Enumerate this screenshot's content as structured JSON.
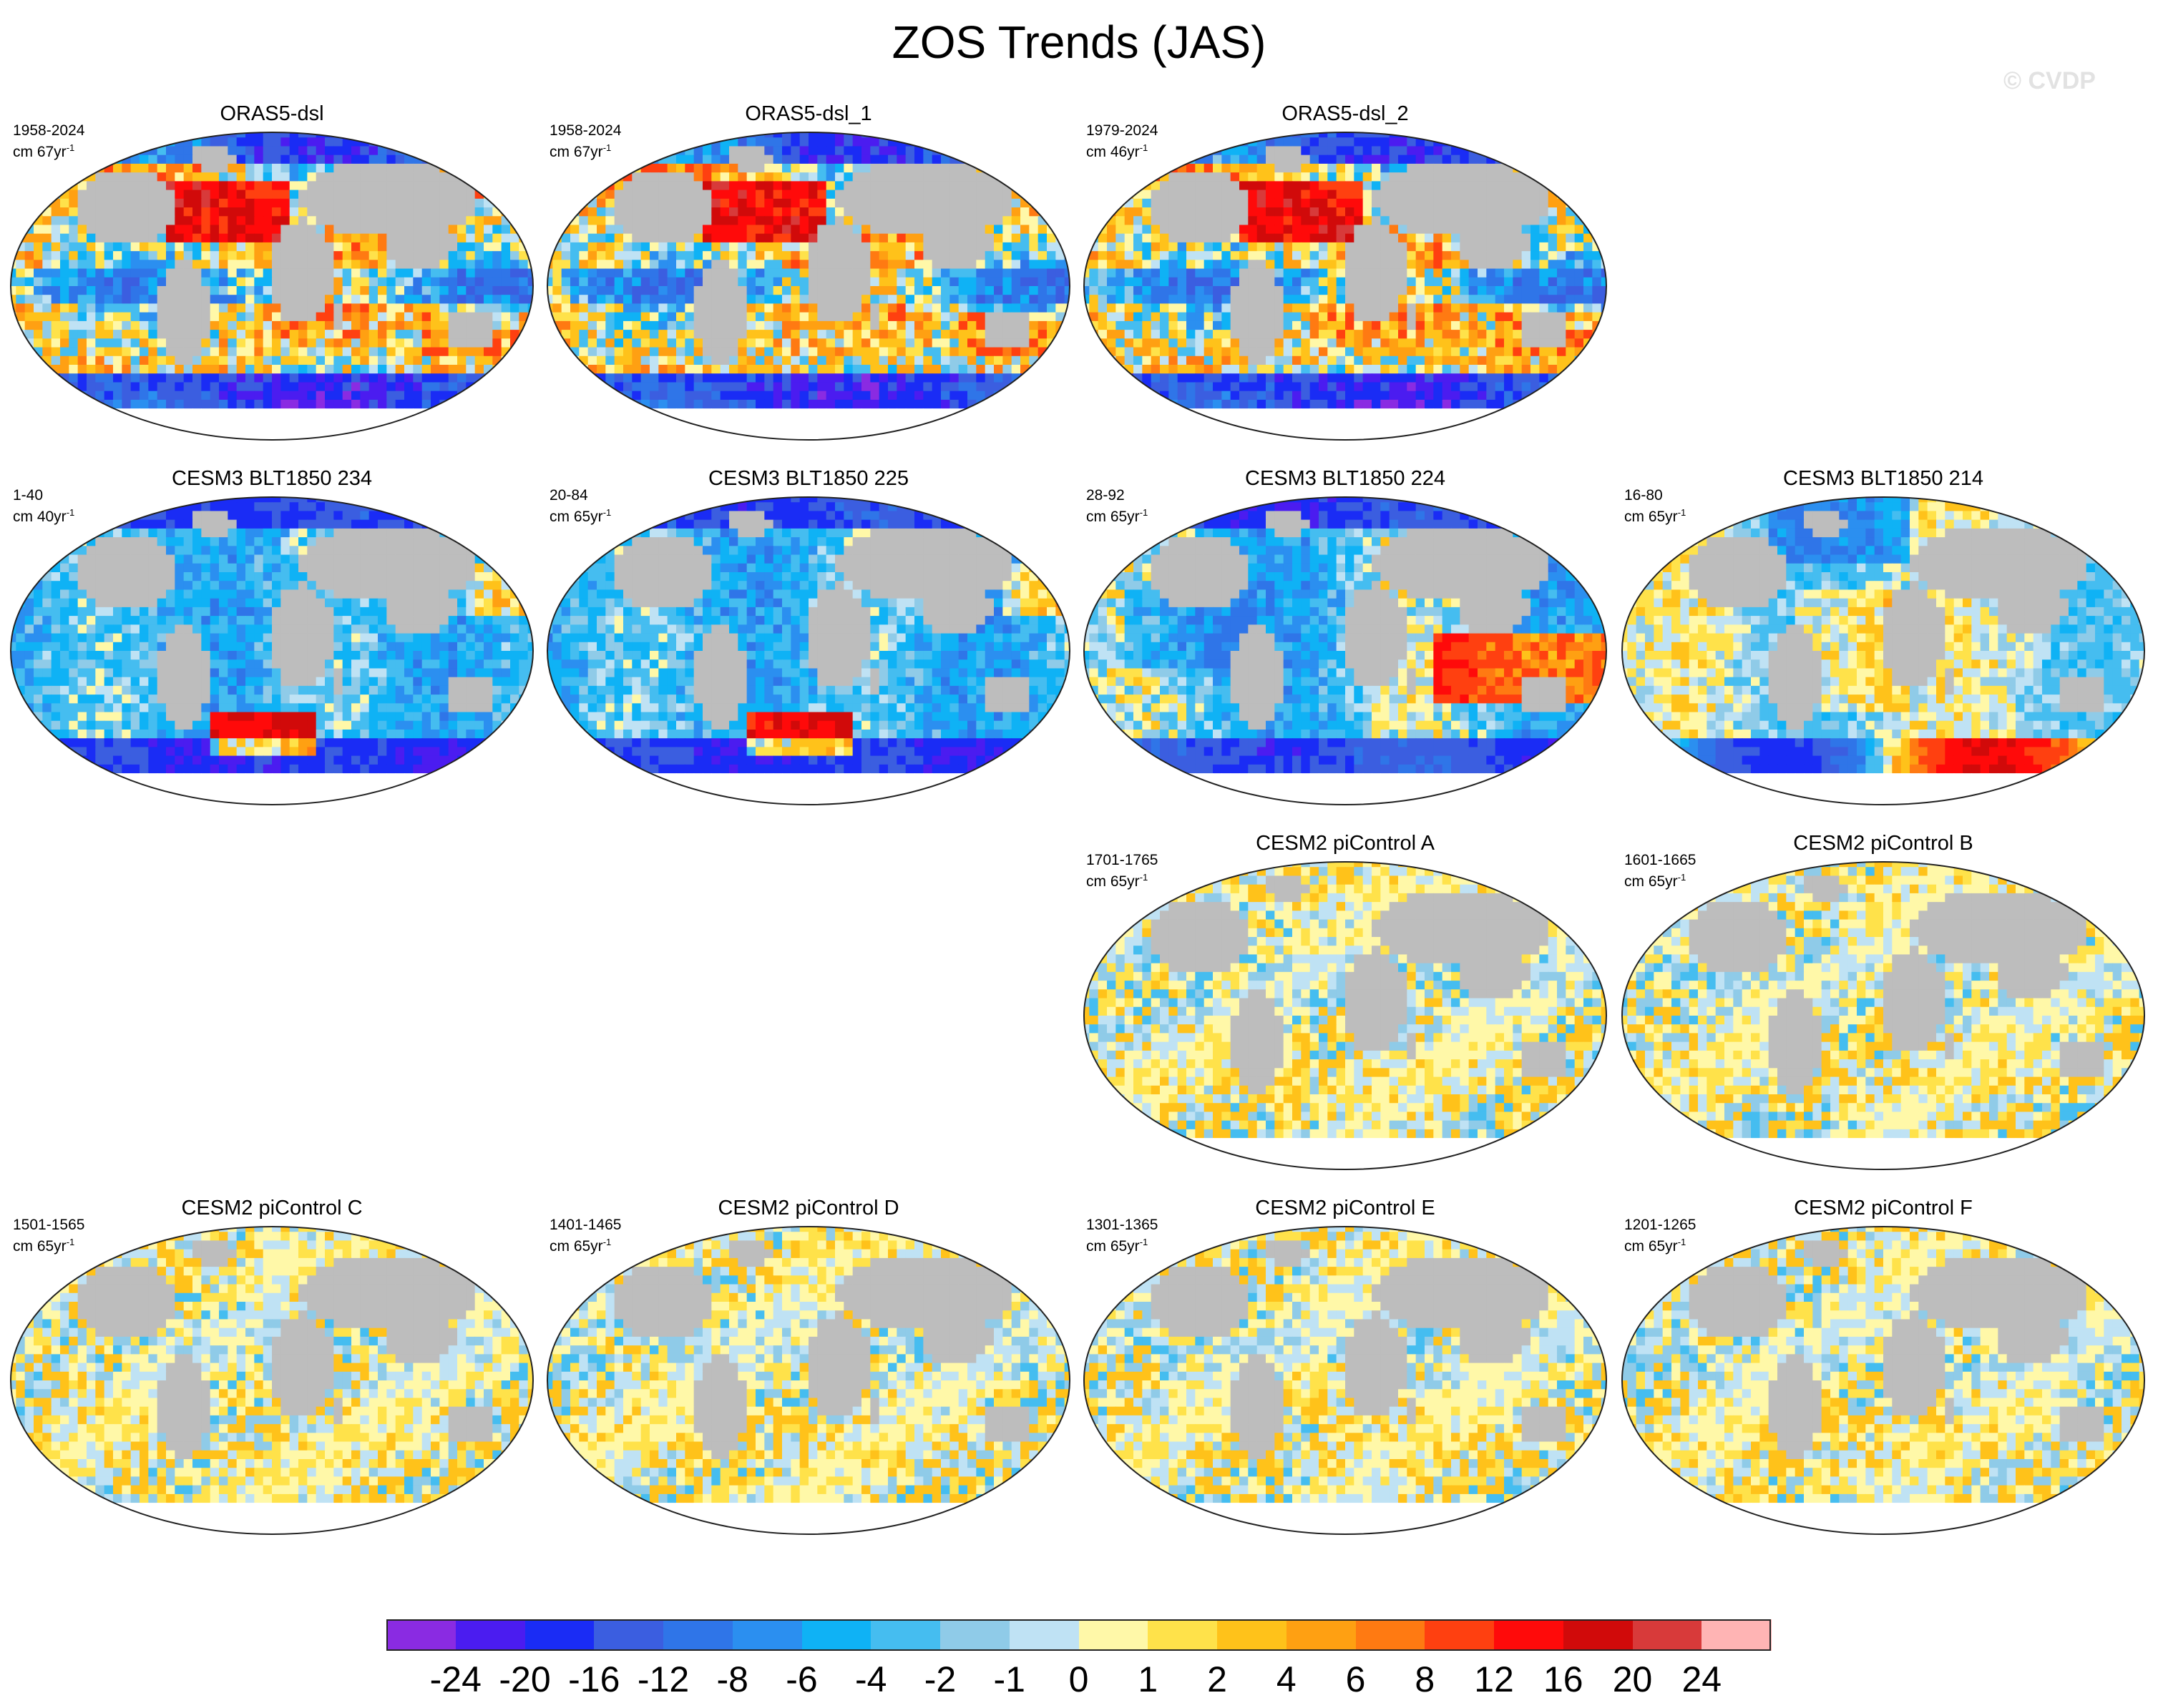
{
  "figure": {
    "title": "ZOS Trends (JAS)",
    "watermark": "© CVDP"
  },
  "colors": {
    "land": "#bdbdbd",
    "antarctica": "#ffffff",
    "palette": [
      "#8a2be2",
      "#4b1cf0",
      "#1a2cf5",
      "#3b5ee0",
      "#2f75e8",
      "#2b8ff0",
      "#0fb2f5",
      "#45bdf0",
      "#8fcbe8",
      "#bfe2f4",
      "#fff8a8",
      "#ffe24a",
      "#ffc21a",
      "#ffa012",
      "#ff7a12",
      "#ff4010",
      "#ff0a0a",
      "#d10a0a",
      "#d83a3a",
      "#ffb4b4"
    ]
  },
  "colorbar": {
    "labels": [
      "-24",
      "-20",
      "-16",
      "-12",
      "-8",
      "-6",
      "-4",
      "-2",
      "-1",
      "0",
      "1",
      "2",
      "4",
      "6",
      "8",
      "12",
      "16",
      "20",
      "24"
    ]
  },
  "chart_data": [
    {
      "type": "heatmap",
      "title": "ORAS5-dsl",
      "period": "1958-2024",
      "rate_prefix": "cm 67yr",
      "rate_exp": "-1",
      "scheme": "obs",
      "seed": 11
    },
    {
      "type": "heatmap",
      "title": "ORAS5-dsl_1",
      "period": "1958-2024",
      "rate_prefix": "cm 67yr",
      "rate_exp": "-1",
      "scheme": "obs",
      "seed": 12
    },
    {
      "type": "heatmap",
      "title": "ORAS5-dsl_2",
      "period": "1979-2024",
      "rate_prefix": "cm 46yr",
      "rate_exp": "-1",
      "scheme": "obs",
      "seed": 23
    },
    {
      "type": "heatmap",
      "title": "CESM3 BLT1850 234",
      "period": "1-40",
      "rate_prefix": "cm 40yr",
      "rate_exp": "-1",
      "scheme": "blue",
      "seed": 31
    },
    {
      "type": "heatmap",
      "title": "CESM3 BLT1850 225",
      "period": "20-84",
      "rate_prefix": "cm 65yr",
      "rate_exp": "-1",
      "scheme": "blue",
      "seed": 32
    },
    {
      "type": "heatmap",
      "title": "CESM3 BLT1850 224",
      "period": "28-92",
      "rate_prefix": "cm 65yr",
      "rate_exp": "-1",
      "scheme": "bluered",
      "seed": 33
    },
    {
      "type": "heatmap",
      "title": "CESM3 BLT1850 214",
      "period": "16-80",
      "rate_prefix": "cm 65yr",
      "rate_exp": "-1",
      "scheme": "bluepale",
      "seed": 34
    },
    {
      "type": "heatmap",
      "title": "CESM2 piControl A",
      "period": "1701-1765",
      "rate_prefix": "cm 65yr",
      "rate_exp": "-1",
      "scheme": "smooth",
      "seed": 41
    },
    {
      "type": "heatmap",
      "title": "CESM2 piControl B",
      "period": "1601-1665",
      "rate_prefix": "cm 65yr",
      "rate_exp": "-1",
      "scheme": "smooth",
      "seed": 42
    },
    {
      "type": "heatmap",
      "title": "CESM2 piControl C",
      "period": "1501-1565",
      "rate_prefix": "cm 65yr",
      "rate_exp": "-1",
      "scheme": "smooth",
      "seed": 43
    },
    {
      "type": "heatmap",
      "title": "CESM2 piControl D",
      "period": "1401-1465",
      "rate_prefix": "cm 65yr",
      "rate_exp": "-1",
      "scheme": "smooth",
      "seed": 44
    },
    {
      "type": "heatmap",
      "title": "CESM2 piControl E",
      "period": "1301-1365",
      "rate_prefix": "cm 65yr",
      "rate_exp": "-1",
      "scheme": "smooth",
      "seed": 45
    },
    {
      "type": "heatmap",
      "title": "CESM2 piControl F",
      "period": "1201-1265",
      "rate_prefix": "cm 65yr",
      "rate_exp": "-1",
      "scheme": "smooth",
      "seed": 46
    }
  ]
}
